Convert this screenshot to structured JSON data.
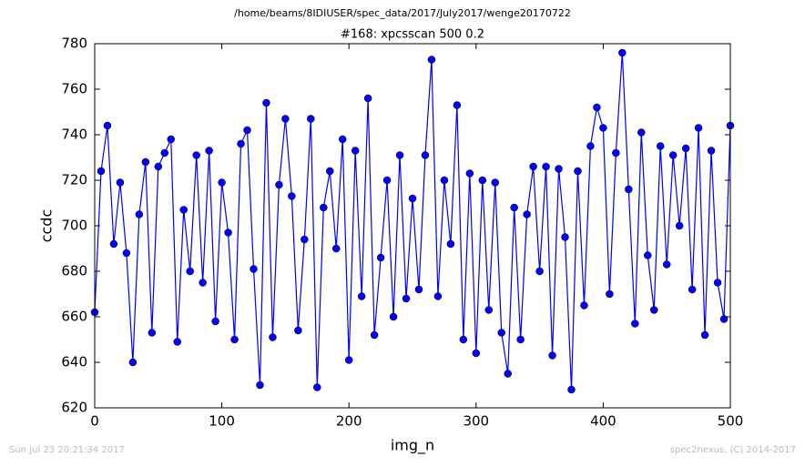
{
  "chart_data": {
    "type": "line",
    "suptitle": "/home/beams/8IDIUSER/spec_data/2017/July2017/wenge20170722",
    "title": "#168: xpcsscan 500 0.2",
    "xlabel": "img_n",
    "ylabel": "ccdc",
    "footer_left": "Sun Jul 23 20:21:34 2017",
    "footer_right": "spec2nexus, (C) 2014-2017",
    "xlim": [
      0,
      500
    ],
    "ylim": [
      620,
      780
    ],
    "xticks": [
      0,
      100,
      200,
      300,
      400,
      500
    ],
    "yticks": [
      620,
      640,
      660,
      680,
      700,
      720,
      740,
      760,
      780
    ],
    "x": [
      0,
      5,
      10,
      15,
      20,
      25,
      30,
      35,
      40,
      45,
      50,
      55,
      60,
      65,
      70,
      75,
      80,
      85,
      90,
      95,
      100,
      105,
      110,
      115,
      120,
      125,
      130,
      135,
      140,
      145,
      150,
      155,
      160,
      165,
      170,
      175,
      180,
      185,
      190,
      195,
      200,
      205,
      210,
      215,
      220,
      225,
      230,
      235,
      240,
      245,
      250,
      255,
      260,
      265,
      270,
      275,
      280,
      285,
      290,
      295,
      300,
      305,
      310,
      315,
      320,
      325,
      330,
      335,
      340,
      345,
      350,
      355,
      360,
      365,
      370,
      375,
      380,
      385,
      390,
      395,
      400,
      405,
      410,
      415,
      420,
      425,
      430,
      435,
      440,
      445,
      450,
      455,
      460,
      465,
      470,
      475,
      480,
      485,
      490,
      495,
      500
    ],
    "series": [
      {
        "color": "#0000ff",
        "values": [
          662,
          724,
          744,
          692,
          719,
          688,
          640,
          705,
          728,
          653,
          726,
          732,
          738,
          649,
          707,
          680,
          731,
          675,
          733,
          658,
          719,
          697,
          650,
          736,
          742,
          681,
          630,
          754,
          651,
          718,
          747,
          713,
          654,
          694,
          747,
          629,
          708,
          724,
          690,
          738,
          641,
          733,
          669,
          756,
          652,
          686,
          720,
          660,
          731,
          668,
          712,
          672,
          731,
          773,
          669,
          720,
          692,
          753,
          650,
          723,
          644,
          720,
          663,
          719,
          653,
          635,
          708,
          650,
          705,
          726,
          680,
          726,
          643,
          725,
          695,
          628,
          724,
          665,
          735,
          752,
          743,
          670,
          732,
          776,
          716,
          657,
          741,
          687,
          663,
          735,
          683,
          731,
          700,
          734,
          672,
          743,
          652,
          733,
          675,
          659,
          744
        ]
      }
    ]
  }
}
